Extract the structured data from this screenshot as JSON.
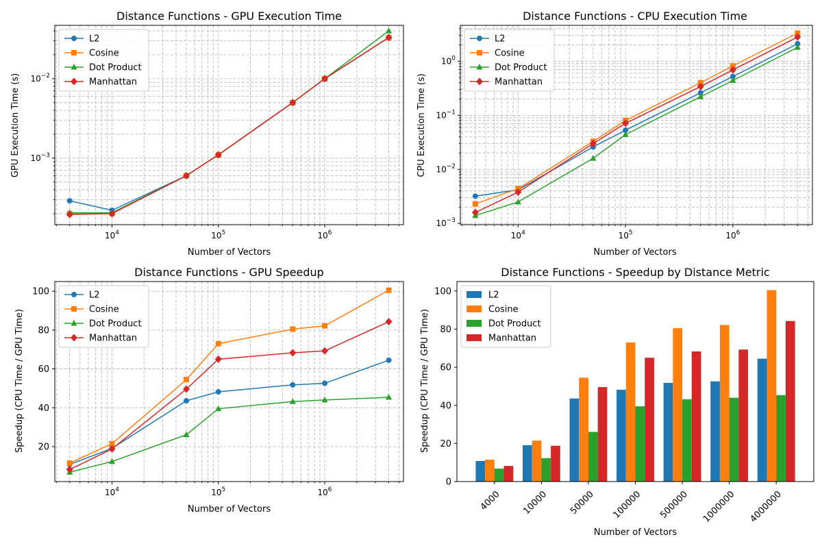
{
  "chart_data": [
    {
      "type": "line",
      "title": "Distance Functions - GPU Execution Time",
      "xlabel": "Number of Vectors",
      "ylabel": "GPU Execution Time (s)",
      "xscale": "log",
      "yscale": "log",
      "xlim": [
        2900,
        5500000
      ],
      "ylim": [
        0.000145,
        0.047
      ],
      "x_ticks": [
        {
          "v": 10000,
          "b": "10",
          "e": "4"
        },
        {
          "v": 100000,
          "b": "10",
          "e": "5"
        },
        {
          "v": 1000000,
          "b": "10",
          "e": "6"
        }
      ],
      "y_ticks": [
        {
          "v": 0.001,
          "b": "10",
          "e": "−3"
        },
        {
          "v": 0.01,
          "b": "10",
          "e": "−2"
        }
      ],
      "grid": true,
      "legend_position": "top-left",
      "x": [
        4000,
        10000,
        50000,
        100000,
        500000,
        1000000,
        4000000
      ],
      "series": [
        {
          "name": "L2",
          "color": "#1f77b4",
          "marker": "circle",
          "values": [
            0.00029,
            0.00022,
            0.0006,
            0.0011,
            0.005,
            0.01,
            0.033
          ]
        },
        {
          "name": "Cosine",
          "color": "#ff7f0e",
          "marker": "square",
          "values": [
            0.0002,
            0.0002,
            0.0006,
            0.0011,
            0.005,
            0.01,
            0.033
          ]
        },
        {
          "name": "Dot Product",
          "color": "#2ca02c",
          "marker": "triangle",
          "values": [
            0.000205,
            0.000205,
            0.0006,
            0.0011,
            0.005,
            0.01,
            0.04
          ]
        },
        {
          "name": "Manhattan",
          "color": "#d62728",
          "marker": "diamond",
          "values": [
            0.000195,
            0.0002,
            0.0006,
            0.0011,
            0.005,
            0.01,
            0.033
          ]
        }
      ]
    },
    {
      "type": "line",
      "title": "Distance Functions - CPU Execution Time",
      "xlabel": "Number of Vectors",
      "ylabel": "CPU Execution Time (s)",
      "xscale": "log",
      "yscale": "log",
      "xlim": [
        2900,
        5500000
      ],
      "ylim": [
        0.00095,
        4.6
      ],
      "x_ticks": [
        {
          "v": 10000,
          "b": "10",
          "e": "4"
        },
        {
          "v": 100000,
          "b": "10",
          "e": "5"
        },
        {
          "v": 1000000,
          "b": "10",
          "e": "6"
        }
      ],
      "y_ticks": [
        {
          "v": 0.001,
          "b": "10",
          "e": "−3"
        },
        {
          "v": 0.01,
          "b": "10",
          "e": "−2"
        },
        {
          "v": 0.1,
          "b": "10",
          "e": "−1"
        },
        {
          "v": 1,
          "b": "10",
          "e": "0"
        }
      ],
      "grid": true,
      "legend_position": "top-left",
      "x": [
        4000,
        10000,
        50000,
        100000,
        500000,
        1000000,
        4000000
      ],
      "series": [
        {
          "name": "L2",
          "color": "#1f77b4",
          "marker": "circle",
          "values": [
            0.0032,
            0.0042,
            0.026,
            0.053,
            0.26,
            0.52,
            2.1
          ]
        },
        {
          "name": "Cosine",
          "color": "#ff7f0e",
          "marker": "square",
          "values": [
            0.0023,
            0.0044,
            0.033,
            0.08,
            0.4,
            0.82,
            3.3
          ]
        },
        {
          "name": "Dot Product",
          "color": "#2ca02c",
          "marker": "triangle",
          "values": [
            0.0014,
            0.0025,
            0.016,
            0.044,
            0.22,
            0.44,
            1.8
          ]
        },
        {
          "name": "Manhattan",
          "color": "#d62728",
          "marker": "diamond",
          "values": [
            0.0016,
            0.0038,
            0.03,
            0.071,
            0.34,
            0.69,
            2.8
          ]
        }
      ]
    },
    {
      "type": "line",
      "title": "Distance Functions - GPU Speedup",
      "xlabel": "Number of Vectors",
      "ylabel": "Speedup (CPU Time / GPU Time)",
      "xscale": "log",
      "yscale": "linear",
      "xlim": [
        2900,
        5500000
      ],
      "ylim": [
        2,
        105
      ],
      "x_ticks": [
        {
          "v": 10000,
          "b": "10",
          "e": "4"
        },
        {
          "v": 100000,
          "b": "10",
          "e": "5"
        },
        {
          "v": 1000000,
          "b": "10",
          "e": "6"
        }
      ],
      "y_ticks": [
        20,
        40,
        60,
        80,
        100
      ],
      "grid": true,
      "legend_position": "top-left",
      "x": [
        4000,
        10000,
        50000,
        100000,
        500000,
        1000000,
        4000000
      ],
      "series": [
        {
          "name": "L2",
          "color": "#1f77b4",
          "marker": "circle",
          "values": [
            10.8,
            19.1,
            43.6,
            48.2,
            51.8,
            52.6,
            64.5
          ]
        },
        {
          "name": "Cosine",
          "color": "#ff7f0e",
          "marker": "square",
          "values": [
            11.5,
            21.5,
            54.5,
            73,
            80.5,
            82.2,
            100.5
          ]
        },
        {
          "name": "Dot Product",
          "color": "#2ca02c",
          "marker": "triangle",
          "values": [
            6.8,
            12.3,
            26.1,
            39.5,
            43.2,
            44,
            45.4
          ]
        },
        {
          "name": "Manhattan",
          "color": "#d62728",
          "marker": "diamond",
          "values": [
            8.2,
            18.8,
            49.6,
            65,
            68.3,
            69.3,
            84.3
          ]
        }
      ]
    },
    {
      "type": "bar",
      "title": "Distance Functions - Speedup by Distance Metric",
      "xlabel": "Number of Vectors",
      "ylabel": "Speedup (CPU Time / GPU Time)",
      "ylim": [
        0,
        105
      ],
      "y_ticks": [
        0,
        20,
        40,
        60,
        80,
        100
      ],
      "grid": false,
      "legend_position": "top-left",
      "categories": [
        "4000",
        "10000",
        "50000",
        "100000",
        "500000",
        "1000000",
        "4000000"
      ],
      "series": [
        {
          "name": "L2",
          "color": "#1f77b4",
          "values": [
            10.8,
            19.1,
            43.6,
            48.2,
            51.8,
            52.6,
            64.5
          ]
        },
        {
          "name": "Cosine",
          "color": "#ff7f0e",
          "values": [
            11.5,
            21.5,
            54.5,
            73,
            80.5,
            82.2,
            100.5
          ]
        },
        {
          "name": "Dot Product",
          "color": "#2ca02c",
          "values": [
            6.8,
            12.3,
            26.1,
            39.5,
            43.2,
            44,
            45.4
          ]
        },
        {
          "name": "Manhattan",
          "color": "#d62728",
          "values": [
            8.2,
            18.8,
            49.6,
            65,
            68.3,
            69.3,
            84.3
          ]
        }
      ]
    }
  ]
}
